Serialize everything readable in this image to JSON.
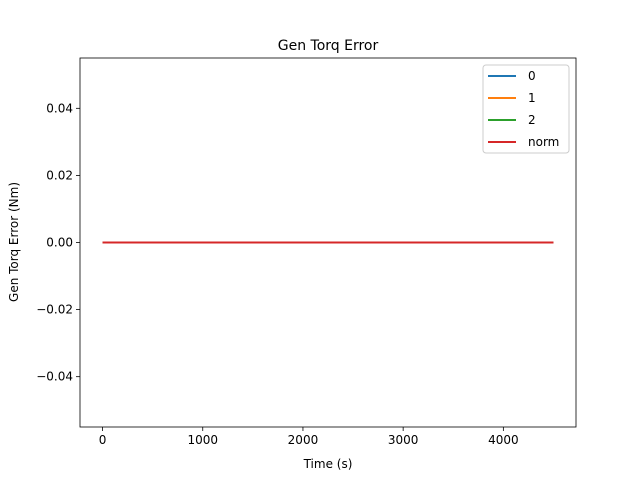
{
  "chart_data": {
    "type": "line",
    "title": "Gen Torq Error",
    "xlabel": "Time (s)",
    "ylabel": "Gen Torq Error (Nm)",
    "xlim": [
      -225,
      4725
    ],
    "ylim": [
      -0.055,
      0.055
    ],
    "x_ticks": [
      0,
      1000,
      2000,
      3000,
      4000
    ],
    "x_tick_labels": [
      "0",
      "1000",
      "2000",
      "3000",
      "4000"
    ],
    "y_ticks": [
      -0.04,
      -0.02,
      0.0,
      0.02,
      0.04
    ],
    "y_tick_labels": [
      "−0.04",
      "−0.02",
      "0.00",
      "0.02",
      "0.04"
    ],
    "grid": false,
    "legend_position": "top-right",
    "series": [
      {
        "name": "0",
        "color": "#1f77b4",
        "x": [
          0,
          4500
        ],
        "y": [
          0,
          0
        ]
      },
      {
        "name": "1",
        "color": "#ff7f0e",
        "x": [
          0,
          4500
        ],
        "y": [
          0,
          0
        ]
      },
      {
        "name": "2",
        "color": "#2ca02c",
        "x": [
          0,
          4500
        ],
        "y": [
          0,
          0
        ]
      },
      {
        "name": "norm",
        "color": "#d62728",
        "x": [
          0,
          4500
        ],
        "y": [
          0,
          0
        ]
      }
    ]
  }
}
